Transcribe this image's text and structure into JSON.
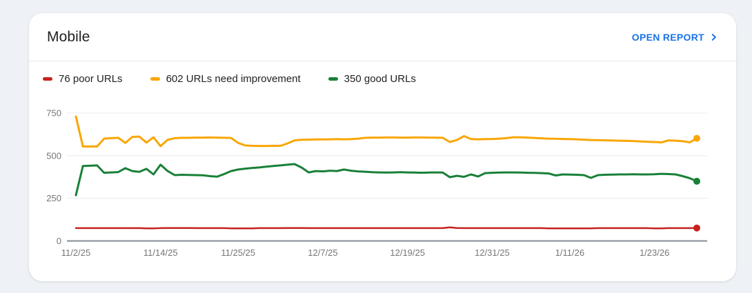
{
  "page": {
    "background": "#eef1f5"
  },
  "card": {
    "title": "Mobile",
    "open_report_label": "OPEN REPORT"
  },
  "legend": {
    "items": [
      {
        "key": "poor",
        "label": "76 poor URLs",
        "color": "#c5221f"
      },
      {
        "key": "needs-improvement",
        "label": "602 URLs need improvement",
        "color": "#f9a602"
      },
      {
        "key": "good",
        "label": "350 good URLs",
        "color": "#188038"
      }
    ]
  },
  "colors": {
    "link": "#1a73e8",
    "axis_text": "#757575",
    "gridline": "#e8eaed",
    "baseline": "#9aa0a6",
    "title_text": "#1f1f1f",
    "legend_text": "#202124"
  },
  "chart_data": {
    "type": "line",
    "title": "Mobile",
    "xlabel": "",
    "ylabel": "",
    "x_unit": "day",
    "x_tick_labels": [
      "11/2/25",
      "11/14/25",
      "11/25/25",
      "12/7/25",
      "12/19/25",
      "12/31/25",
      "1/11/26",
      "1/23/26"
    ],
    "x_tick_indices": [
      0,
      12,
      23,
      35,
      47,
      59,
      70,
      82
    ],
    "ylim": [
      0,
      750
    ],
    "yticks": [
      0,
      250,
      500,
      750
    ],
    "grid": true,
    "legend_position": "top",
    "series": [
      {
        "key": "poor",
        "name": "76 poor URLs",
        "color": "#c5221f",
        "values": [
          75,
          75,
          75,
          75,
          75,
          75,
          75,
          75,
          75,
          75,
          74,
          74,
          75,
          76,
          76,
          76,
          76,
          75,
          75,
          75,
          75,
          75,
          74,
          74,
          74,
          74,
          75,
          75,
          75,
          75,
          76,
          76,
          76,
          75,
          75,
          75,
          75,
          75,
          75,
          75,
          75,
          75,
          75,
          75,
          75,
          75,
          75,
          75,
          75,
          75,
          75,
          75,
          75,
          80,
          76,
          75,
          75,
          75,
          75,
          75,
          75,
          75,
          75,
          75,
          75,
          75,
          75,
          74,
          74,
          74,
          74,
          74,
          74,
          74,
          75,
          75,
          75,
          75,
          75,
          75,
          75,
          75,
          74,
          74,
          75,
          75,
          75,
          75,
          76
        ]
      },
      {
        "key": "needs-improvement",
        "name": "602 URLs need improvement",
        "color": "#f9a602",
        "values": [
          730,
          554,
          554,
          554,
          600,
          603,
          605,
          575,
          610,
          612,
          577,
          608,
          556,
          593,
          603,
          605,
          605,
          606,
          606,
          607,
          606,
          605,
          604,
          575,
          560,
          558,
          557,
          557,
          558,
          558,
          572,
          590,
          593,
          594,
          595,
          595,
          596,
          597,
          596,
          597,
          600,
          605,
          606,
          606,
          607,
          607,
          606,
          606,
          607,
          607,
          606,
          606,
          605,
          580,
          592,
          615,
          598,
          596,
          597,
          598,
          600,
          603,
          608,
          608,
          606,
          604,
          602,
          600,
          599,
          598,
          597,
          596,
          594,
          592,
          591,
          590,
          589,
          588,
          587,
          586,
          584,
          582,
          580,
          578,
          590,
          588,
          585,
          578,
          602
        ]
      },
      {
        "key": "good",
        "name": "350 good URLs",
        "color": "#188038",
        "values": [
          268,
          440,
          441,
          443,
          400,
          402,
          404,
          427,
          410,
          405,
          423,
          390,
          447,
          410,
          386,
          388,
          387,
          386,
          385,
          380,
          377,
          392,
          410,
          419,
          424,
          428,
          431,
          436,
          440,
          443,
          447,
          451,
          430,
          402,
          410,
          408,
          412,
          410,
          419,
          412,
          408,
          406,
          403,
          402,
          401,
          402,
          403,
          402,
          401,
          400,
          401,
          402,
          401,
          374,
          382,
          376,
          390,
          378,
          398,
          400,
          401,
          402,
          402,
          401,
          400,
          399,
          398,
          396,
          384,
          390,
          389,
          388,
          386,
          370,
          386,
          388,
          389,
          390,
          390,
          391,
          390,
          390,
          391,
          394,
          392,
          390,
          380,
          368,
          350
        ]
      }
    ]
  }
}
